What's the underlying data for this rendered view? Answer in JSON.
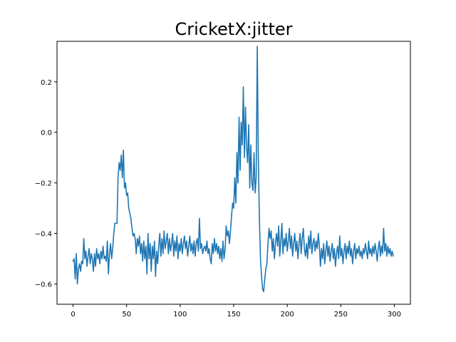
{
  "chart_data": {
    "type": "line",
    "title": "CricketX:jitter",
    "xlabel": "",
    "ylabel": "",
    "xlim": [
      -15,
      315
    ],
    "ylim": [
      -0.68,
      0.36
    ],
    "grid": false,
    "legend": "none",
    "x_ticks": [
      0,
      50,
      100,
      150,
      200,
      250,
      300
    ],
    "x_tick_labels": [
      "0",
      "50",
      "100",
      "150",
      "200",
      "250",
      "300"
    ],
    "y_ticks": [
      -0.6,
      -0.4,
      -0.2,
      0.0,
      0.2
    ],
    "y_tick_labels": [
      "−0.6",
      "−0.4",
      "−0.2",
      "0.0",
      "0.2"
    ],
    "series": [
      {
        "color": "#1f77b4",
        "points": [
          [
            0,
            -0.51
          ],
          [
            1,
            -0.5
          ],
          [
            2,
            -0.58
          ],
          [
            3,
            -0.48
          ],
          [
            4,
            -0.6
          ],
          [
            5,
            -0.54
          ],
          [
            6,
            -0.52
          ],
          [
            7,
            -0.55
          ],
          [
            8,
            -0.51
          ],
          [
            9,
            -0.52
          ],
          [
            10,
            -0.42
          ],
          [
            11,
            -0.5
          ],
          [
            12,
            -0.47
          ],
          [
            13,
            -0.53
          ],
          [
            14,
            -0.49
          ],
          [
            15,
            -0.46
          ],
          [
            16,
            -0.52
          ],
          [
            17,
            -0.48
          ],
          [
            18,
            -0.5
          ],
          [
            19,
            -0.55
          ],
          [
            20,
            -0.48
          ],
          [
            21,
            -0.53
          ],
          [
            22,
            -0.46
          ],
          [
            23,
            -0.5
          ],
          [
            24,
            -0.48
          ],
          [
            25,
            -0.52
          ],
          [
            26,
            -0.47
          ],
          [
            27,
            -0.5
          ],
          [
            28,
            -0.45
          ],
          [
            29,
            -0.5
          ],
          [
            30,
            -0.49
          ],
          [
            31,
            -0.51
          ],
          [
            32,
            -0.43
          ],
          [
            33,
            -0.56
          ],
          [
            34,
            -0.48
          ],
          [
            35,
            -0.44
          ],
          [
            36,
            -0.5
          ],
          [
            37,
            -0.46
          ],
          [
            38,
            -0.4
          ],
          [
            39,
            -0.36
          ],
          [
            40,
            -0.36
          ],
          [
            41,
            -0.36
          ],
          [
            42,
            -0.18
          ],
          [
            43,
            -0.12
          ],
          [
            44,
            -0.15
          ],
          [
            45,
            -0.09
          ],
          [
            46,
            -0.18
          ],
          [
            47,
            -0.07
          ],
          [
            48,
            -0.22
          ],
          [
            49,
            -0.2
          ],
          [
            50,
            -0.25
          ],
          [
            51,
            -0.24
          ],
          [
            52,
            -0.3
          ],
          [
            53,
            -0.32
          ],
          [
            54,
            -0.34
          ],
          [
            55,
            -0.38
          ],
          [
            56,
            -0.41
          ],
          [
            57,
            -0.4
          ],
          [
            58,
            -0.42
          ],
          [
            59,
            -0.48
          ],
          [
            60,
            -0.42
          ],
          [
            61,
            -0.45
          ],
          [
            62,
            -0.41
          ],
          [
            63,
            -0.48
          ],
          [
            64,
            -0.44
          ],
          [
            65,
            -0.51
          ],
          [
            66,
            -0.43
          ],
          [
            67,
            -0.5
          ],
          [
            68,
            -0.45
          ],
          [
            69,
            -0.56
          ],
          [
            70,
            -0.4
          ],
          [
            71,
            -0.5
          ],
          [
            72,
            -0.44
          ],
          [
            73,
            -0.55
          ],
          [
            74,
            -0.45
          ],
          [
            75,
            -0.5
          ],
          [
            76,
            -0.43
          ],
          [
            77,
            -0.57
          ],
          [
            78,
            -0.47
          ],
          [
            79,
            -0.52
          ],
          [
            80,
            -0.45
          ],
          [
            81,
            -0.4
          ],
          [
            82,
            -0.49
          ],
          [
            83,
            -0.42
          ],
          [
            84,
            -0.48
          ],
          [
            85,
            -0.39
          ],
          [
            86,
            -0.46
          ],
          [
            87,
            -0.43
          ],
          [
            88,
            -0.4
          ],
          [
            89,
            -0.48
          ],
          [
            90,
            -0.42
          ],
          [
            91,
            -0.47
          ],
          [
            92,
            -0.44
          ],
          [
            93,
            -0.4
          ],
          [
            94,
            -0.49
          ],
          [
            95,
            -0.43
          ],
          [
            96,
            -0.47
          ],
          [
            97,
            -0.41
          ],
          [
            98,
            -0.5
          ],
          [
            99,
            -0.44
          ],
          [
            100,
            -0.47
          ],
          [
            101,
            -0.42
          ],
          [
            102,
            -0.48
          ],
          [
            103,
            -0.44
          ],
          [
            104,
            -0.41
          ],
          [
            105,
            -0.46
          ],
          [
            106,
            -0.43
          ],
          [
            107,
            -0.49
          ],
          [
            108,
            -0.45
          ],
          [
            109,
            -0.41
          ],
          [
            110,
            -0.47
          ],
          [
            111,
            -0.44
          ],
          [
            112,
            -0.48
          ],
          [
            113,
            -0.43
          ],
          [
            114,
            -0.49
          ],
          [
            115,
            -0.44
          ],
          [
            116,
            -0.42
          ],
          [
            117,
            -0.47
          ],
          [
            118,
            -0.34
          ],
          [
            119,
            -0.46
          ],
          [
            120,
            -0.44
          ],
          [
            121,
            -0.48
          ],
          [
            122,
            -0.46
          ],
          [
            123,
            -0.45
          ],
          [
            124,
            -0.47
          ],
          [
            125,
            -0.43
          ],
          [
            126,
            -0.48
          ],
          [
            127,
            -0.46
          ],
          [
            128,
            -0.5
          ],
          [
            129,
            -0.52
          ],
          [
            130,
            -0.44
          ],
          [
            131,
            -0.48
          ],
          [
            132,
            -0.42
          ],
          [
            133,
            -0.47
          ],
          [
            134,
            -0.44
          ],
          [
            135,
            -0.48
          ],
          [
            136,
            -0.45
          ],
          [
            137,
            -0.5
          ],
          [
            138,
            -0.46
          ],
          [
            139,
            -0.51
          ],
          [
            140,
            -0.43
          ],
          [
            141,
            -0.5
          ],
          [
            142,
            -0.46
          ],
          [
            143,
            -0.37
          ],
          [
            144,
            -0.41
          ],
          [
            145,
            -0.39
          ],
          [
            146,
            -0.44
          ],
          [
            147,
            -0.39
          ],
          [
            148,
            -0.33
          ],
          [
            149,
            -0.28
          ],
          [
            150,
            -0.3
          ],
          [
            151,
            -0.18
          ],
          [
            152,
            -0.28
          ],
          [
            153,
            -0.08
          ],
          [
            154,
            -0.2
          ],
          [
            155,
            0.06
          ],
          [
            156,
            -0.15
          ],
          [
            157,
            0.04
          ],
          [
            158,
            -0.05
          ],
          [
            159,
            0.18
          ],
          [
            160,
            -0.1
          ],
          [
            161,
            0.1
          ],
          [
            162,
            -0.06
          ],
          [
            163,
            -0.12
          ],
          [
            164,
            0.03
          ],
          [
            165,
            -0.22
          ],
          [
            166,
            -0.05
          ],
          [
            167,
            -0.2
          ],
          [
            168,
            -0.23
          ],
          [
            169,
            -0.08
          ],
          [
            170,
            -0.24
          ],
          [
            171,
            -0.18
          ],
          [
            172,
            0.34
          ],
          [
            173,
            -0.1
          ],
          [
            174,
            -0.34
          ],
          [
            175,
            -0.5
          ],
          [
            176,
            -0.57
          ],
          [
            177,
            -0.62
          ],
          [
            178,
            -0.63
          ],
          [
            179,
            -0.58
          ],
          [
            180,
            -0.54
          ],
          [
            181,
            -0.52
          ],
          [
            182,
            -0.44
          ],
          [
            183,
            -0.38
          ],
          [
            184,
            -0.42
          ],
          [
            185,
            -0.39
          ],
          [
            186,
            -0.47
          ],
          [
            187,
            -0.42
          ],
          [
            188,
            -0.5
          ],
          [
            189,
            -0.44
          ],
          [
            190,
            -0.4
          ],
          [
            191,
            -0.45
          ],
          [
            192,
            -0.37
          ],
          [
            193,
            -0.49
          ],
          [
            194,
            -0.43
          ],
          [
            195,
            -0.36
          ],
          [
            196,
            -0.48
          ],
          [
            197,
            -0.42
          ],
          [
            198,
            -0.45
          ],
          [
            199,
            -0.4
          ],
          [
            200,
            -0.47
          ],
          [
            201,
            -0.43
          ],
          [
            202,
            -0.38
          ],
          [
            203,
            -0.46
          ],
          [
            204,
            -0.41
          ],
          [
            205,
            -0.49
          ],
          [
            206,
            -0.44
          ],
          [
            207,
            -0.4
          ],
          [
            208,
            -0.47
          ],
          [
            209,
            -0.43
          ],
          [
            210,
            -0.5
          ],
          [
            211,
            -0.44
          ],
          [
            212,
            -0.4
          ],
          [
            213,
            -0.48
          ],
          [
            214,
            -0.42
          ],
          [
            215,
            -0.38
          ],
          [
            216,
            -0.46
          ],
          [
            217,
            -0.49
          ],
          [
            218,
            -0.44
          ],
          [
            219,
            -0.5
          ],
          [
            220,
            -0.41
          ],
          [
            221,
            -0.46
          ],
          [
            222,
            -0.39
          ],
          [
            223,
            -0.48
          ],
          [
            224,
            -0.44
          ],
          [
            225,
            -0.42
          ],
          [
            226,
            -0.47
          ],
          [
            227,
            -0.43
          ],
          [
            228,
            -0.46
          ],
          [
            229,
            -0.4
          ],
          [
            230,
            -0.45
          ],
          [
            231,
            -0.53
          ],
          [
            232,
            -0.46
          ],
          [
            233,
            -0.5
          ],
          [
            234,
            -0.44
          ],
          [
            235,
            -0.52
          ],
          [
            236,
            -0.47
          ],
          [
            237,
            -0.43
          ],
          [
            238,
            -0.49
          ],
          [
            239,
            -0.45
          ],
          [
            240,
            -0.51
          ],
          [
            241,
            -0.47
          ],
          [
            242,
            -0.44
          ],
          [
            243,
            -0.5
          ],
          [
            244,
            -0.46
          ],
          [
            245,
            -0.53
          ],
          [
            246,
            -0.48
          ],
          [
            247,
            -0.45
          ],
          [
            248,
            -0.5
          ],
          [
            249,
            -0.41
          ],
          [
            250,
            -0.49
          ],
          [
            251,
            -0.46
          ],
          [
            252,
            -0.52
          ],
          [
            253,
            -0.47
          ],
          [
            254,
            -0.44
          ],
          [
            255,
            -0.5
          ],
          [
            256,
            -0.45
          ],
          [
            257,
            -0.48
          ],
          [
            258,
            -0.43
          ],
          [
            259,
            -0.49
          ],
          [
            260,
            -0.46
          ],
          [
            261,
            -0.52
          ],
          [
            262,
            -0.47
          ],
          [
            263,
            -0.44
          ],
          [
            264,
            -0.5
          ],
          [
            265,
            -0.46
          ],
          [
            266,
            -0.48
          ],
          [
            267,
            -0.45
          ],
          [
            268,
            -0.49
          ],
          [
            269,
            -0.47
          ],
          [
            270,
            -0.5
          ],
          [
            271,
            -0.46
          ],
          [
            272,
            -0.48
          ],
          [
            273,
            -0.44
          ],
          [
            274,
            -0.47
          ],
          [
            275,
            -0.5
          ],
          [
            276,
            -0.43
          ],
          [
            277,
            -0.48
          ],
          [
            278,
            -0.46
          ],
          [
            279,
            -0.49
          ],
          [
            280,
            -0.45
          ],
          [
            281,
            -0.48
          ],
          [
            282,
            -0.44
          ],
          [
            283,
            -0.47
          ],
          [
            284,
            -0.51
          ],
          [
            285,
            -0.46
          ],
          [
            286,
            -0.43
          ],
          [
            287,
            -0.49
          ],
          [
            288,
            -0.45
          ],
          [
            289,
            -0.48
          ],
          [
            290,
            -0.38
          ],
          [
            291,
            -0.47
          ],
          [
            292,
            -0.44
          ],
          [
            293,
            -0.49
          ],
          [
            294,
            -0.45
          ],
          [
            295,
            -0.48
          ],
          [
            296,
            -0.46
          ],
          [
            297,
            -0.49
          ],
          [
            298,
            -0.47
          ],
          [
            299,
            -0.49
          ]
        ]
      }
    ]
  }
}
